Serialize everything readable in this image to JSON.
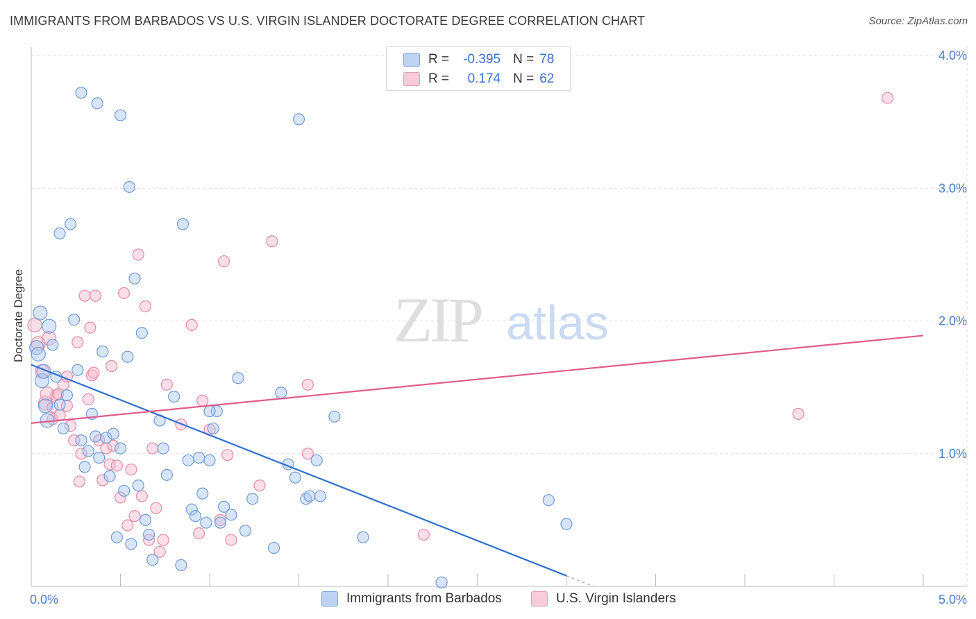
{
  "header": {
    "title": "IMMIGRANTS FROM BARBADOS VS U.S. VIRGIN ISLANDER DOCTORATE DEGREE CORRELATION CHART",
    "source": "Source: ZipAtlas.com"
  },
  "watermark": {
    "zip": "ZIP",
    "atlas": "atlas"
  },
  "legend": {
    "rows": [
      {
        "r_label": "R =",
        "r_value": "-0.395",
        "n_label": "N =",
        "n_value": "78",
        "color": "#a9c6f0"
      },
      {
        "r_label": "R =",
        "r_value": "0.174",
        "n_label": "N =",
        "n_value": "62",
        "color": "#f6b9cb"
      }
    ]
  },
  "bottom_legend": {
    "items": [
      {
        "label": "Immigrants from Barbados",
        "color": "#a9c6f0"
      },
      {
        "label": "U.S. Virgin Islanders",
        "color": "#f6b9cb"
      }
    ]
  },
  "chart_data": {
    "type": "scatter",
    "title": "IMMIGRANTS FROM BARBADOS VS U.S. VIRGIN ISLANDER DOCTORATE DEGREE CORRELATION CHART",
    "xlabel": "",
    "ylabel": "Doctorate Degree",
    "xlim": [
      0,
      5.0
    ],
    "ylim": [
      0,
      4.0
    ],
    "x_tick_labels": [
      "0.0%",
      "5.0%"
    ],
    "y_ticks": [
      1.0,
      2.0,
      3.0,
      4.0
    ],
    "y_tick_labels": [
      "1.0%",
      "2.0%",
      "3.0%",
      "4.0%"
    ],
    "grid": true,
    "legend_position": "top-center",
    "series": [
      {
        "name": "Immigrants from Barbados",
        "color": "#a9c6f0",
        "stroke": "#6f9bd8",
        "trend": {
          "x": [
            0.0,
            3.0
          ],
          "y": [
            1.67,
            0.08
          ],
          "color": "#2f6fd1"
        },
        "points": [
          [
            0.03,
            1.8
          ],
          [
            0.04,
            1.75
          ],
          [
            0.05,
            2.06
          ],
          [
            0.06,
            1.55
          ],
          [
            0.07,
            1.62
          ],
          [
            0.08,
            1.36
          ],
          [
            0.09,
            1.25
          ],
          [
            0.1,
            1.96
          ],
          [
            0.12,
            1.82
          ],
          [
            0.14,
            1.58
          ],
          [
            0.16,
            1.37
          ],
          [
            0.18,
            1.19
          ],
          [
            0.2,
            1.44
          ],
          [
            0.22,
            2.73
          ],
          [
            0.24,
            2.01
          ],
          [
            0.26,
            1.63
          ],
          [
            0.28,
            1.1
          ],
          [
            0.3,
            0.9
          ],
          [
            0.32,
            1.02
          ],
          [
            0.34,
            1.3
          ],
          [
            0.36,
            1.13
          ],
          [
            0.38,
            0.97
          ],
          [
            0.4,
            1.77
          ],
          [
            0.42,
            1.12
          ],
          [
            0.44,
            0.83
          ],
          [
            0.46,
            1.15
          ],
          [
            0.48,
            0.37
          ],
          [
            0.5,
            1.04
          ],
          [
            0.52,
            0.72
          ],
          [
            0.54,
            1.73
          ],
          [
            0.56,
            0.32
          ],
          [
            0.58,
            2.32
          ],
          [
            0.6,
            0.76
          ],
          [
            0.62,
            1.91
          ],
          [
            0.64,
            0.5
          ],
          [
            0.66,
            0.39
          ],
          [
            0.68,
            0.2
          ],
          [
            0.72,
            1.25
          ],
          [
            0.74,
            1.04
          ],
          [
            0.76,
            0.84
          ],
          [
            0.8,
            1.43
          ],
          [
            0.84,
            0.16
          ],
          [
            0.88,
            0.95
          ],
          [
            0.9,
            0.58
          ],
          [
            0.92,
            0.53
          ],
          [
            0.94,
            0.97
          ],
          [
            0.96,
            0.7
          ],
          [
            0.98,
            0.48
          ],
          [
            1.0,
            0.95
          ],
          [
            1.02,
            1.19
          ],
          [
            1.04,
            1.32
          ],
          [
            1.06,
            0.48
          ],
          [
            1.08,
            0.6
          ],
          [
            1.12,
            0.54
          ],
          [
            1.16,
            1.57
          ],
          [
            1.2,
            0.42
          ],
          [
            1.24,
            0.66
          ],
          [
            1.36,
            0.29
          ],
          [
            1.4,
            1.46
          ],
          [
            1.44,
            0.92
          ],
          [
            1.48,
            0.82
          ],
          [
            1.54,
            0.66
          ],
          [
            1.56,
            0.68
          ],
          [
            1.62,
            0.68
          ],
          [
            1.7,
            1.28
          ],
          [
            1.86,
            0.37
          ],
          [
            2.3,
            0.03
          ],
          [
            2.9,
            0.65
          ],
          [
            3.0,
            0.47
          ],
          [
            0.28,
            3.72
          ],
          [
            0.37,
            3.64
          ],
          [
            0.5,
            3.55
          ],
          [
            0.55,
            3.01
          ],
          [
            0.85,
            2.73
          ],
          [
            0.16,
            2.66
          ],
          [
            1.5,
            3.52
          ],
          [
            1.0,
            1.32
          ],
          [
            1.6,
            0.95
          ]
        ]
      },
      {
        "name": "U.S. Virgin Islanders",
        "color": "#f6b9cb",
        "stroke": "#e78aa6",
        "trend": {
          "x": [
            0.0,
            5.0
          ],
          "y": [
            1.23,
            1.89
          ],
          "color": "#e25b8a"
        },
        "points": [
          [
            0.02,
            1.97
          ],
          [
            0.04,
            1.83
          ],
          [
            0.06,
            1.62
          ],
          [
            0.08,
            1.38
          ],
          [
            0.09,
            1.45
          ],
          [
            0.1,
            1.87
          ],
          [
            0.12,
            1.26
          ],
          [
            0.14,
            1.44
          ],
          [
            0.16,
            1.29
          ],
          [
            0.18,
            1.52
          ],
          [
            0.2,
            1.36
          ],
          [
            0.22,
            1.21
          ],
          [
            0.24,
            1.1
          ],
          [
            0.26,
            1.84
          ],
          [
            0.27,
            0.79
          ],
          [
            0.28,
            1.0
          ],
          [
            0.3,
            2.19
          ],
          [
            0.32,
            1.41
          ],
          [
            0.33,
            1.95
          ],
          [
            0.34,
            1.59
          ],
          [
            0.36,
            2.19
          ],
          [
            0.38,
            1.1
          ],
          [
            0.4,
            0.8
          ],
          [
            0.42,
            1.04
          ],
          [
            0.44,
            0.92
          ],
          [
            0.46,
            1.06
          ],
          [
            0.48,
            0.91
          ],
          [
            0.5,
            0.67
          ],
          [
            0.52,
            2.21
          ],
          [
            0.54,
            0.46
          ],
          [
            0.56,
            0.88
          ],
          [
            0.58,
            0.53
          ],
          [
            0.6,
            2.5
          ],
          [
            0.62,
            0.68
          ],
          [
            0.64,
            2.11
          ],
          [
            0.66,
            0.35
          ],
          [
            0.68,
            1.04
          ],
          [
            0.7,
            0.59
          ],
          [
            0.72,
            0.26
          ],
          [
            0.74,
            0.35
          ],
          [
            0.76,
            1.52
          ],
          [
            0.84,
            1.22
          ],
          [
            0.9,
            1.97
          ],
          [
            0.94,
            0.4
          ],
          [
            0.96,
            1.4
          ],
          [
            1.0,
            1.18
          ],
          [
            1.06,
            0.5
          ],
          [
            1.08,
            2.45
          ],
          [
            1.1,
            0.99
          ],
          [
            1.12,
            0.35
          ],
          [
            1.28,
            0.76
          ],
          [
            1.35,
            2.6
          ],
          [
            1.55,
            1.0
          ],
          [
            1.55,
            1.52
          ],
          [
            2.2,
            0.39
          ],
          [
            4.3,
            1.3
          ],
          [
            4.8,
            3.68
          ],
          [
            0.45,
            1.66
          ],
          [
            0.15,
            1.45
          ],
          [
            0.2,
            1.58
          ],
          [
            0.12,
            1.35
          ],
          [
            0.35,
            1.61
          ]
        ]
      }
    ]
  }
}
